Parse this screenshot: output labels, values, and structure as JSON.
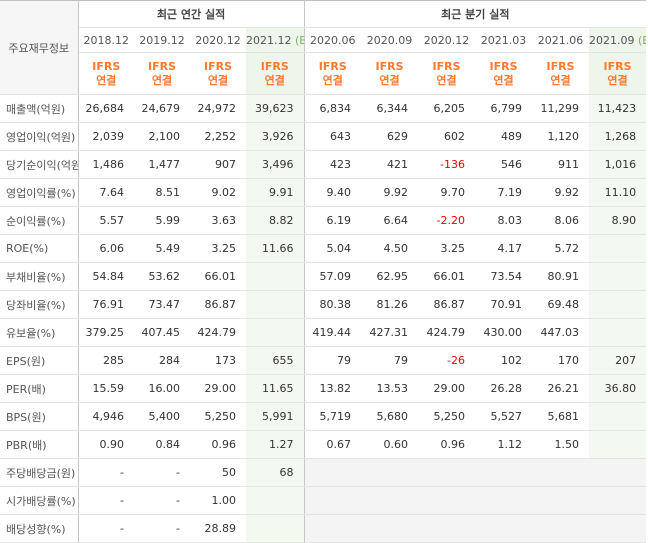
{
  "header": {
    "corner_label": "주요재무정보",
    "annual_title": "최근 연간 실적",
    "quarterly_title": "최근 분기 실적",
    "periods": [
      "2018.12",
      "2019.12",
      "2020.12",
      "2021.12",
      "2020.06",
      "2020.09",
      "2020.12",
      "2021.03",
      "2021.06",
      "2021.09"
    ],
    "estimate_marks": [
      "",
      "",
      "",
      "(E)",
      "",
      "",
      "",
      "",
      "",
      "(E)"
    ],
    "ifrs_line1": "IFRS",
    "ifrs_line2": "연결"
  },
  "rows": [
    {
      "label": "매출액(억원)",
      "values": [
        "26,684",
        "24,679",
        "24,972",
        "39,623",
        "6,834",
        "6,344",
        "6,205",
        "6,799",
        "11,299",
        "11,423"
      ]
    },
    {
      "label": "영업이익(억원)",
      "values": [
        "2,039",
        "2,100",
        "2,252",
        "3,926",
        "643",
        "629",
        "602",
        "489",
        "1,120",
        "1,268"
      ]
    },
    {
      "label": "당기순이익(억원)",
      "values": [
        "1,486",
        "1,477",
        "907",
        "3,496",
        "423",
        "421",
        "-136",
        "546",
        "911",
        "1,016"
      ]
    },
    {
      "label": "영업이익률(%)",
      "values": [
        "7.64",
        "8.51",
        "9.02",
        "9.91",
        "9.40",
        "9.92",
        "9.70",
        "7.19",
        "9.92",
        "11.10"
      ]
    },
    {
      "label": "순이익률(%)",
      "values": [
        "5.57",
        "5.99",
        "3.63",
        "8.82",
        "6.19",
        "6.64",
        "-2.20",
        "8.03",
        "8.06",
        "8.90"
      ]
    },
    {
      "label": "ROE(%)",
      "values": [
        "6.06",
        "5.49",
        "3.25",
        "11.66",
        "5.04",
        "4.50",
        "3.25",
        "4.17",
        "5.72",
        ""
      ]
    },
    {
      "label": "부채비율(%)",
      "values": [
        "54.84",
        "53.62",
        "66.01",
        "",
        "57.09",
        "62.95",
        "66.01",
        "73.54",
        "80.91",
        ""
      ]
    },
    {
      "label": "당좌비율(%)",
      "values": [
        "76.91",
        "73.47",
        "86.87",
        "",
        "80.38",
        "81.26",
        "86.87",
        "70.91",
        "69.48",
        ""
      ]
    },
    {
      "label": "유보율(%)",
      "values": [
        "379.25",
        "407.45",
        "424.79",
        "",
        "419.44",
        "427.31",
        "424.79",
        "430.00",
        "447.03",
        ""
      ]
    },
    {
      "label": "EPS(원)",
      "values": [
        "285",
        "284",
        "173",
        "655",
        "79",
        "79",
        "-26",
        "102",
        "170",
        "207"
      ]
    },
    {
      "label": "PER(배)",
      "values": [
        "15.59",
        "16.00",
        "29.00",
        "11.65",
        "13.82",
        "13.53",
        "29.00",
        "26.28",
        "26.21",
        "36.80"
      ]
    },
    {
      "label": "BPS(원)",
      "values": [
        "4,946",
        "5,400",
        "5,250",
        "5,991",
        "5,719",
        "5,680",
        "5,250",
        "5,527",
        "5,681",
        ""
      ]
    },
    {
      "label": "PBR(배)",
      "values": [
        "0.90",
        "0.84",
        "0.96",
        "1.27",
        "0.67",
        "0.60",
        "0.96",
        "1.12",
        "1.50",
        ""
      ]
    },
    {
      "label": "주당배당금(원)",
      "values": [
        "-",
        "-",
        "50",
        "68",
        "",
        "",
        "",
        "",
        "",
        ""
      ]
    },
    {
      "label": "시가배당률(%)",
      "values": [
        "-",
        "-",
        "1.00",
        "",
        "",
        "",
        "",
        "",
        "",
        ""
      ]
    },
    {
      "label": "배당성향(%)",
      "values": [
        "-",
        "-",
        "28.89",
        "",
        "",
        "",
        "",
        "",
        "",
        ""
      ]
    }
  ]
}
